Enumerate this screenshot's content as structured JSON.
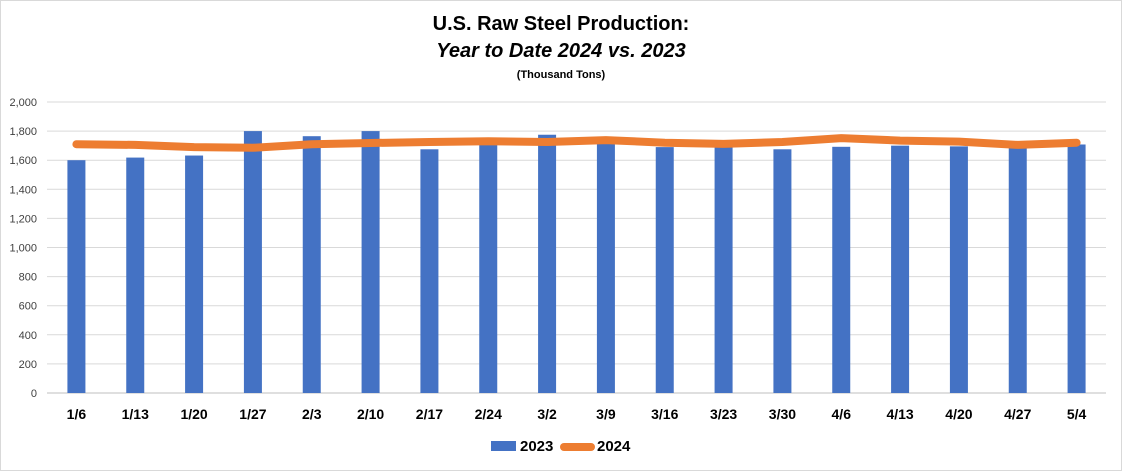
{
  "chart_data": {
    "type": "bar+line",
    "title": "U.S. Raw Steel Production:",
    "title_line2": "Year to Date 2024 vs. 2023",
    "subtitle": "(Thousand Tons)",
    "xlabel": "",
    "ylabel": "",
    "ylim": [
      0,
      2000
    ],
    "yticks": [
      "0",
      "200",
      "400",
      "600",
      "800",
      "1,000",
      "1,200",
      "1,400",
      "1,600",
      "1,800",
      "2,000"
    ],
    "categories": [
      "1/6",
      "1/13",
      "1/20",
      "1/27",
      "2/3",
      "2/10",
      "2/17",
      "2/24",
      "3/2",
      "3/9",
      "3/16",
      "3/23",
      "3/30",
      "4/6",
      "4/13",
      "4/20",
      "4/27",
      "5/4"
    ],
    "series": [
      {
        "name": "2023",
        "type": "bar",
        "color": "#4472C4",
        "values": [
          1600,
          1618,
          1632,
          1800,
          1765,
          1800,
          1675,
          1710,
          1775,
          1712,
          1690,
          1695,
          1675,
          1692,
          1700,
          1695,
          1700,
          1708
        ]
      },
      {
        "name": "2024",
        "type": "line",
        "color": "#ED7D31",
        "values": [
          1710,
          1705,
          1690,
          1685,
          1710,
          1718,
          1725,
          1730,
          1725,
          1738,
          1720,
          1712,
          1725,
          1752,
          1735,
          1728,
          1705,
          1720
        ]
      }
    ],
    "grid": true,
    "legend_position": "bottom"
  }
}
